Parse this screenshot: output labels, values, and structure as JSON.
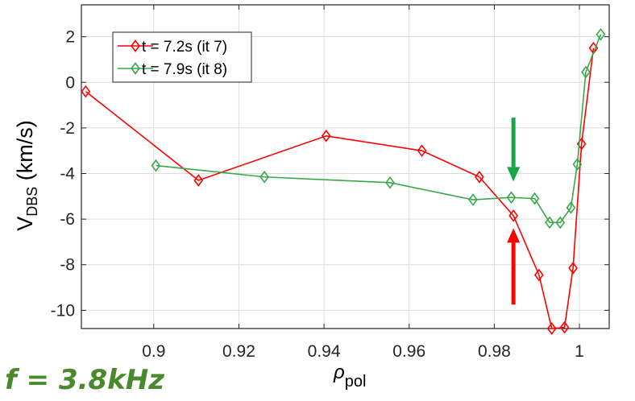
{
  "chart_data": {
    "type": "line",
    "xlabel": "ρ_pol",
    "xlabel_main": "ρ",
    "xlabel_sub": "pol",
    "ylabel": "V_DBS (km/s)",
    "ylabel_main": "V",
    "ylabel_sub": "DBS",
    "ylabel_unit": " (km/s)",
    "xlim": [
      0.883,
      1.007
    ],
    "ylim": [
      -10.8,
      3.4
    ],
    "xticks": [
      0.9,
      0.92,
      0.94,
      0.96,
      0.98,
      1
    ],
    "xtick_labels": [
      "0.9",
      "0.92",
      "0.94",
      "0.96",
      "0.98",
      "1"
    ],
    "yticks": [
      2,
      0,
      -2,
      -4,
      -6,
      -8,
      -10
    ],
    "ytick_labels": [
      "2",
      "0",
      "-2",
      "-4",
      "-6",
      "-8",
      "-10"
    ],
    "grid": true,
    "legend_position": "top-left",
    "series": [
      {
        "name": "t = 7.2s (it 7)",
        "color": "#ff0000",
        "marker": "diamond",
        "x": [
          0.884,
          0.9105,
          0.9405,
          0.963,
          0.9765,
          0.9845,
          0.9905,
          0.9935,
          0.9965,
          0.9985,
          1.0005,
          1.0033
        ],
        "y": [
          -0.4,
          -4.3,
          -2.35,
          -3.0,
          -4.15,
          -5.85,
          -8.45,
          -10.8,
          -10.75,
          -8.15,
          -2.7,
          1.5
        ]
      },
      {
        "name": "t = 7.9s (it 8)",
        "color": "#3aa84a",
        "marker": "diamond",
        "x": [
          0.9005,
          0.926,
          0.9555,
          0.975,
          0.984,
          0.9895,
          0.993,
          0.9955,
          0.998,
          0.9995,
          1.0015,
          1.005
        ],
        "y": [
          -3.65,
          -4.15,
          -4.4,
          -5.15,
          -5.05,
          -5.1,
          -6.15,
          -6.15,
          -5.5,
          -3.6,
          0.45,
          2.1
        ]
      }
    ],
    "annotations": [
      {
        "type": "arrow",
        "direction": "down",
        "color": "#16a648",
        "x": 0.9845,
        "y_from": -1.55,
        "y_to": -4.35
      },
      {
        "type": "arrow",
        "direction": "up",
        "color": "#ff0000",
        "x": 0.9845,
        "y_from": -9.75,
        "y_to": -6.4
      }
    ]
  },
  "freq_label": "f = 3.8kHz",
  "colors": {
    "red_series": "#ff0000",
    "green_series": "#3aa84a",
    "green_arrow": "#16a648",
    "freq_label": "#4a8a2c"
  }
}
